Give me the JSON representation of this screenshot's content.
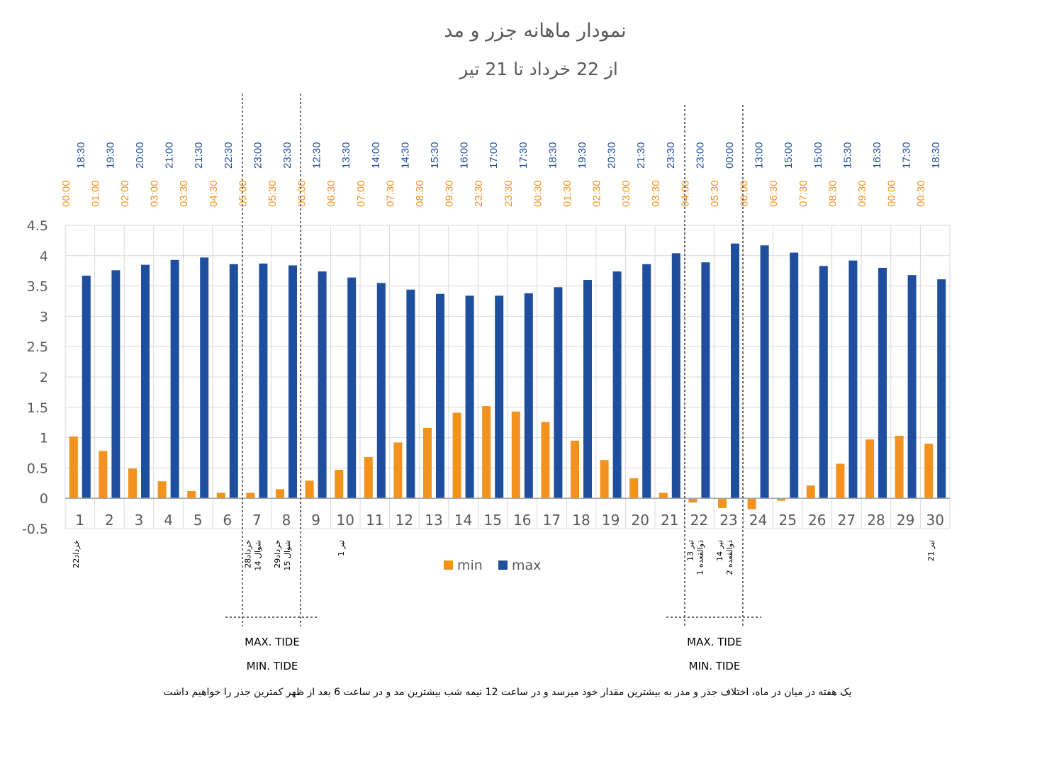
{
  "colors": {
    "min": "#F4921F",
    "max": "#1F4E9E",
    "text": "#595959",
    "grid": "#D9D9D9"
  },
  "chart_data": {
    "type": "bar",
    "title": "نمودار ماهانه جزر و مد",
    "subtitle": "از 22 خرداد تا 21 تیر",
    "ylim": [
      -0.5,
      4.5
    ],
    "y_ticks": [
      "4.5",
      "4",
      "3.5",
      "3",
      "2.5",
      "2",
      "1.5",
      "1",
      "0.5",
      "0",
      "-0.5"
    ],
    "categories": [
      "1",
      "2",
      "3",
      "4",
      "5",
      "6",
      "7",
      "8",
      "9",
      "10",
      "11",
      "12",
      "13",
      "14",
      "15",
      "16",
      "17",
      "18",
      "19",
      "20",
      "21",
      "22",
      "23",
      "24",
      "25",
      "26",
      "27",
      "28",
      "29",
      "30"
    ],
    "series": [
      {
        "name": "min",
        "values": [
          1.02,
          0.78,
          0.49,
          0.28,
          0.12,
          0.09,
          0.09,
          0.15,
          0.29,
          0.47,
          0.68,
          0.92,
          1.16,
          1.41,
          1.52,
          1.43,
          1.26,
          0.95,
          0.63,
          0.33,
          0.09,
          -0.07,
          -0.16,
          -0.18,
          -0.04,
          0.21,
          0.57,
          0.97,
          1.03,
          0.9
        ]
      },
      {
        "name": "max",
        "values": [
          3.67,
          3.76,
          3.85,
          3.93,
          3.97,
          3.86,
          3.87,
          3.84,
          3.74,
          3.64,
          3.55,
          3.44,
          3.37,
          3.34,
          3.34,
          3.38,
          3.48,
          3.6,
          3.74,
          3.86,
          4.04,
          3.89,
          4.2,
          4.17,
          4.05,
          3.83,
          3.92,
          3.8,
          3.68,
          3.61
        ]
      }
    ],
    "max_times": [
      "18:30",
      "19:30",
      "20:00",
      "21:00",
      "21:30",
      "22:30",
      "23:00",
      "23:30",
      "12:30",
      "13:30",
      "14:00",
      "14:30",
      "15:30",
      "16:00",
      "17:00",
      "17:30",
      "18:30",
      "19:30",
      "20:30",
      "21:30",
      "23:30",
      "23:00",
      "00:00",
      "13:00",
      "15:00",
      "15:00",
      "15:30",
      "16:30",
      "17:30",
      "18:30"
    ],
    "min_times": [
      "00:00",
      "01:00",
      "02:00",
      "03:00",
      "03:30",
      "04:30",
      "05:00",
      "05:30",
      "06:00",
      "06:30",
      "07:00",
      "07:30",
      "08:30",
      "09:30",
      "23:30",
      "23:30",
      "00:30",
      "01:30",
      "02:30",
      "03:00",
      "03:30",
      "04:00",
      "05:30",
      "06:00",
      "06:30",
      "07:30",
      "08:30",
      "09:30",
      "00:00",
      "00:30"
    ],
    "legend": [
      "min",
      "max"
    ],
    "date_labels": [
      {
        "day": 1,
        "lines": [
          "22خرداد"
        ]
      },
      {
        "day": 7,
        "lines": [
          "28خرداد",
          "14 شوال"
        ]
      },
      {
        "day": 8,
        "lines": [
          "29خرداد",
          "15 شوال"
        ]
      },
      {
        "day": 10,
        "lines": [
          "1 تیر"
        ]
      },
      {
        "day": 22,
        "lines": [
          "13 تیر",
          "1 ذوالقعده"
        ]
      },
      {
        "day": 23,
        "lines": [
          "14 تیر",
          "2 ذوالقعده"
        ]
      },
      {
        "day": 30,
        "lines": [
          "21 تیر"
        ]
      }
    ],
    "annotations": {
      "max_tide": "MAX. TIDE",
      "min_tide": "MIN. TIDE",
      "footnote": "یک هفته در میان در ماه، اختلاف جذر و مدر به بیشترین مقدار خود میرسد و در ساعت 12 نیمه شب بیشترین مد و در ساعت 6 بعد از ظهر کمترین جذر را خواهیم داشت"
    }
  }
}
